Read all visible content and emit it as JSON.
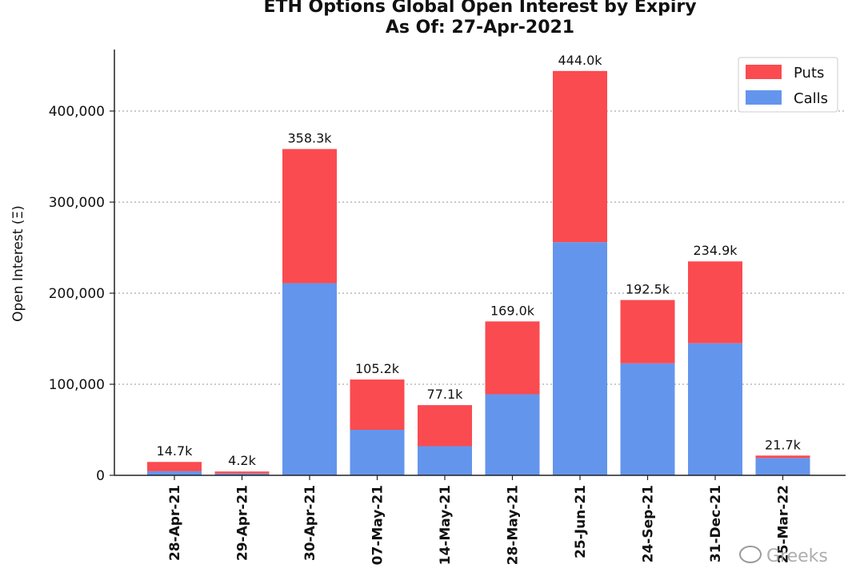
{
  "chart_data": {
    "type": "bar",
    "stacked": true,
    "title": "ETH Options Global Open Interest by Expiry",
    "subtitle": "As Of: 27-Apr-2021",
    "ylabel": "Open Interest (Ξ)",
    "xlabel": "",
    "ylim": [
      0,
      460000
    ],
    "yticks": [
      0,
      100000,
      200000,
      300000,
      400000
    ],
    "ytick_labels": [
      "0",
      "100,000",
      "200,000",
      "300,000",
      "400,000"
    ],
    "grid": "horizontal dotted",
    "legend_position": "top-right",
    "categories": [
      "28-Apr-21",
      "29-Apr-21",
      "30-Apr-21",
      "07-May-21",
      "14-May-21",
      "28-May-21",
      "25-Jun-21",
      "24-Sep-21",
      "31-Dec-21",
      "25-Mar-22"
    ],
    "series": [
      {
        "name": "Calls",
        "color": "#6495ED",
        "values": [
          4500,
          2000,
          211000,
          50000,
          32000,
          89000,
          256000,
          123000,
          145000,
          19000
        ]
      },
      {
        "name": "Puts",
        "color": "#FA4B50",
        "values": [
          10200,
          2200,
          147300,
          55200,
          45100,
          80000,
          188000,
          69500,
          89900,
          2700
        ]
      }
    ],
    "totals_labels": [
      "14.7k",
      "4.2k",
      "358.3k",
      "105.2k",
      "77.1k",
      "169.0k",
      "444.0k",
      "192.5k",
      "234.9k",
      "21.7k"
    ],
    "totals": [
      14700,
      4200,
      358300,
      105200,
      77100,
      169000,
      444000,
      192500,
      234900,
      21700
    ]
  },
  "watermark": "Greeks"
}
